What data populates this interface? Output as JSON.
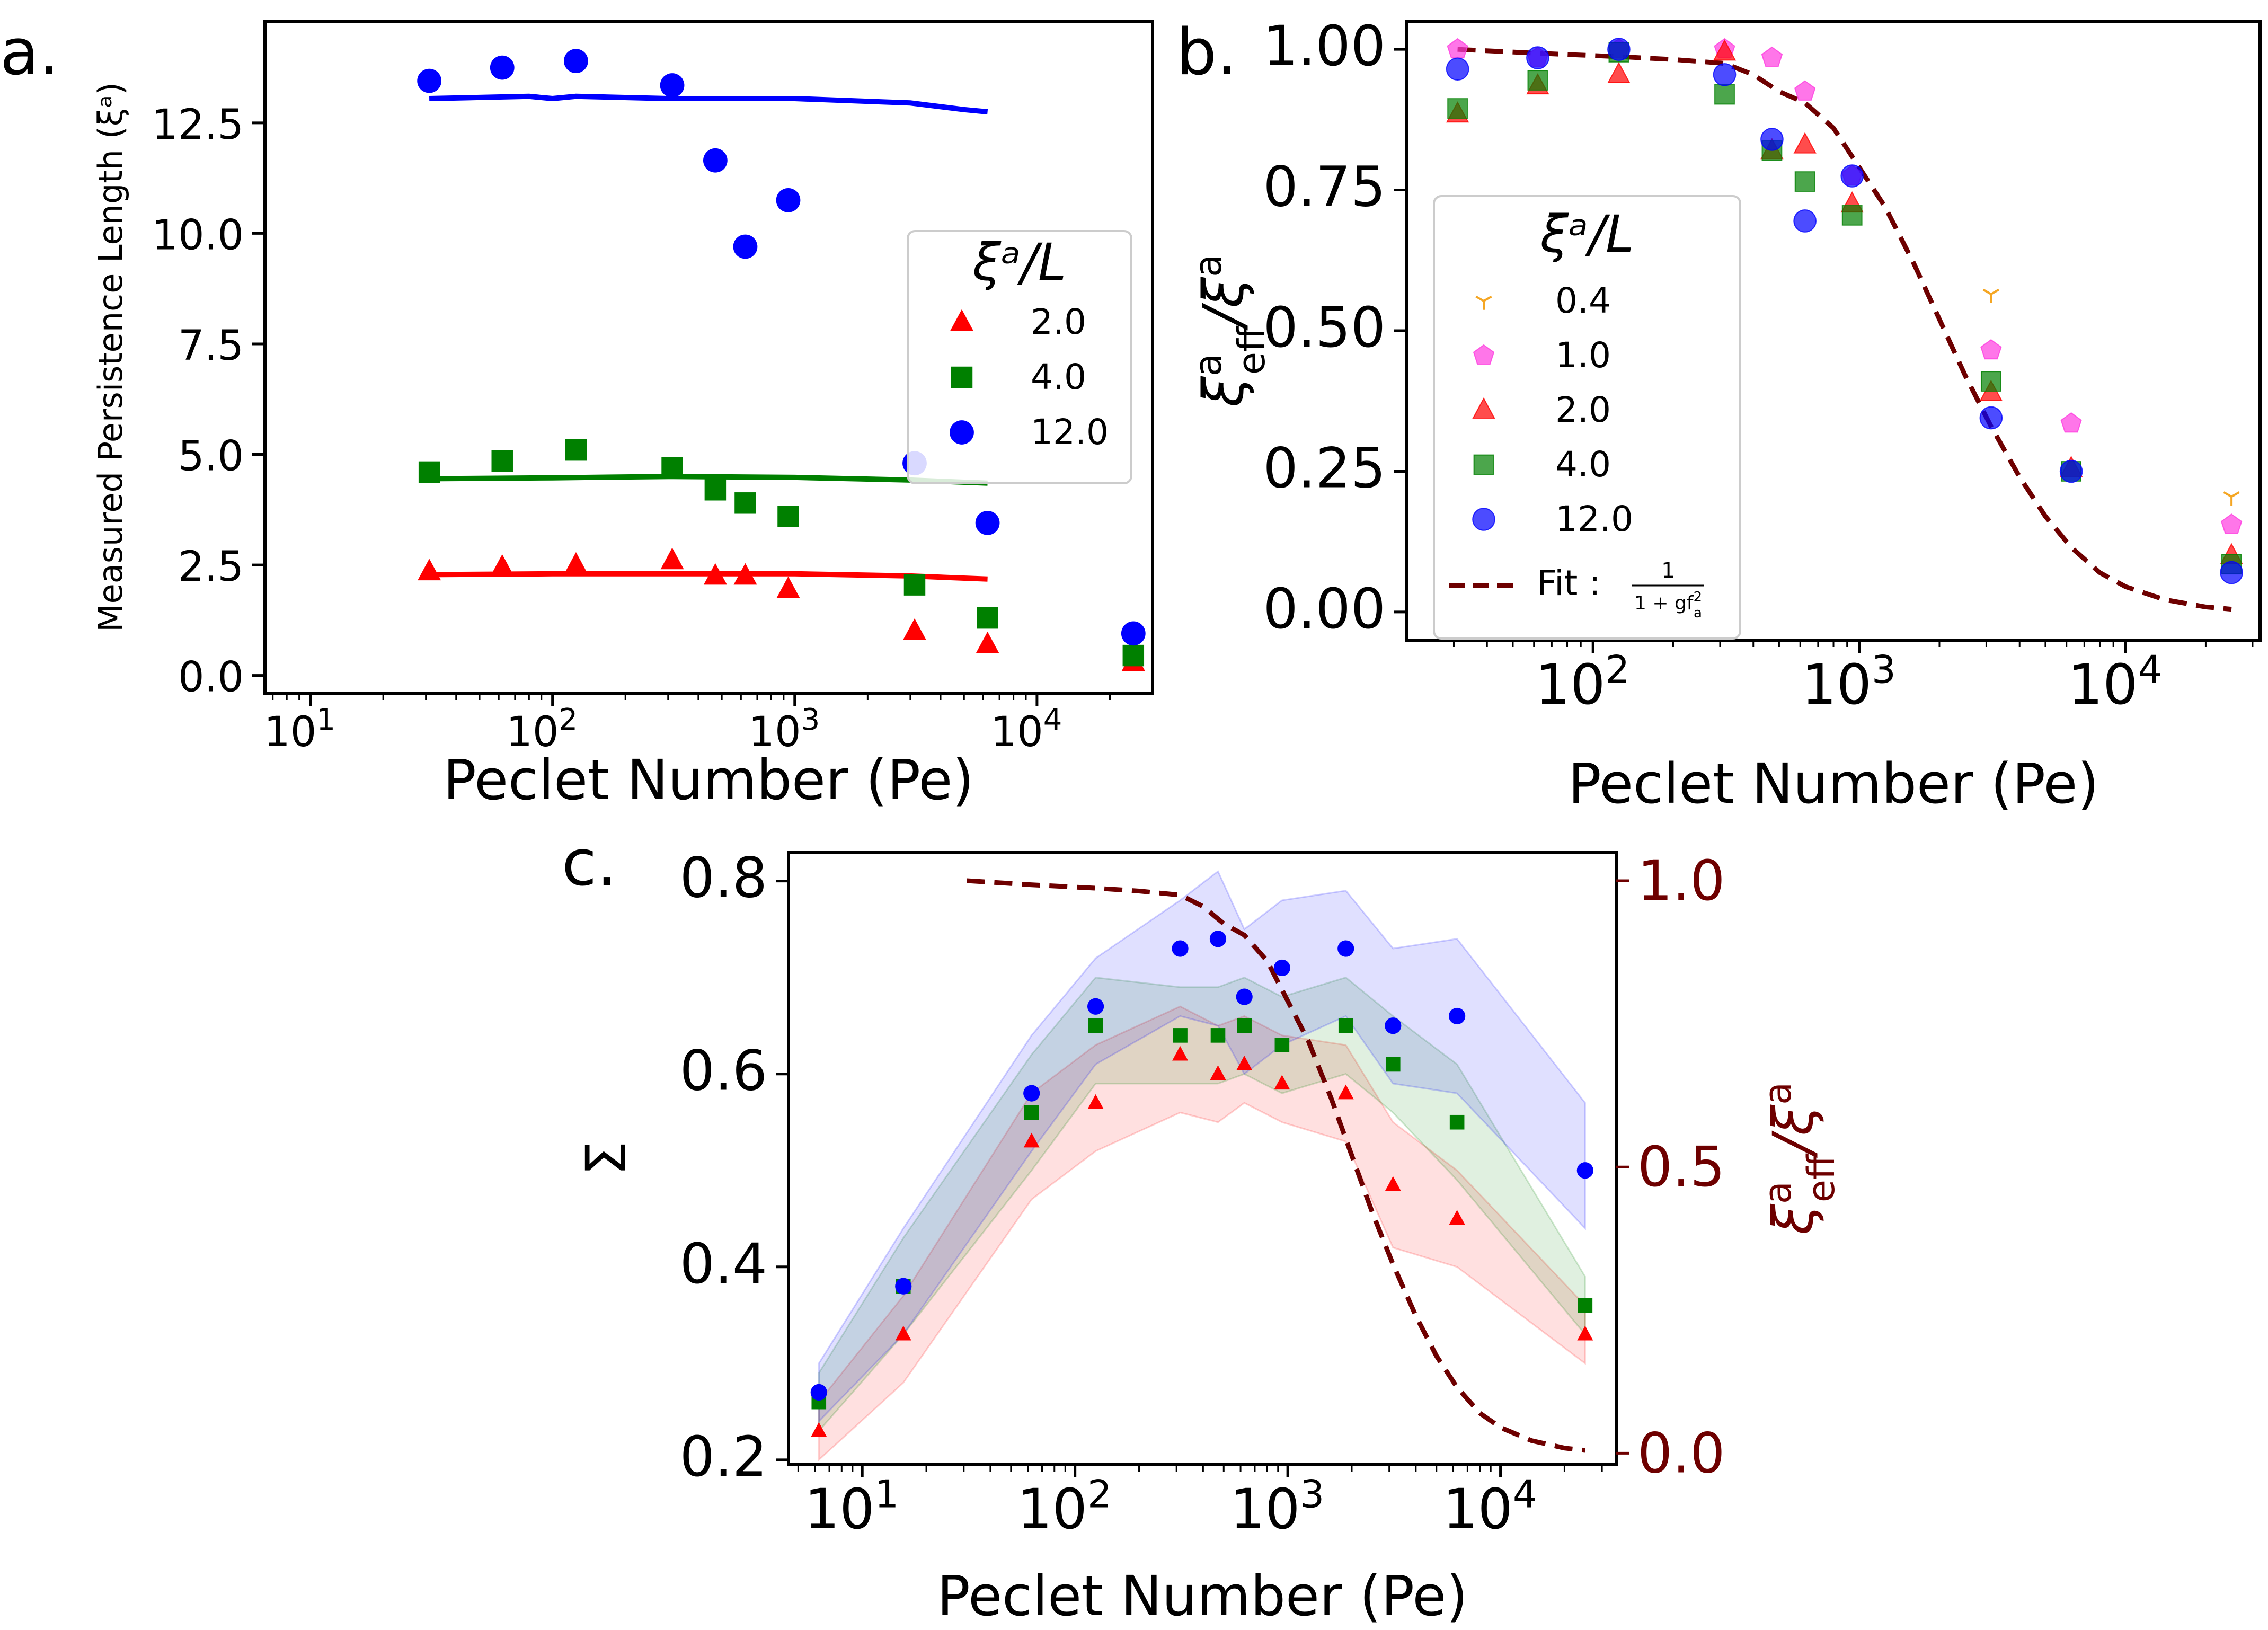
{
  "colors": {
    "red": "#ff0000",
    "green": "#008000",
    "blue": "#0000ff",
    "yellow": "#f5a623",
    "magenta": "#ff3ce0",
    "fit": "#6e0000"
  },
  "chart_data": [
    {
      "panel": "a.",
      "type": "scatter",
      "xscale": "log",
      "xlim": [
        6.5,
        30000
      ],
      "ylim": [
        -0.4,
        14.8
      ],
      "xlabel": "Peclet Number (Pe)",
      "ylabel": "Measured Persistence Length (ξᵃ)",
      "xticks": [
        {
          "value": 10,
          "base": "10",
          "exp": "1"
        },
        {
          "value": 100,
          "base": "10",
          "exp": "2"
        },
        {
          "value": 1000,
          "base": "10",
          "exp": "3"
        },
        {
          "value": 10000,
          "base": "10",
          "exp": "4"
        }
      ],
      "yticks": [
        0.0,
        2.5,
        5.0,
        7.5,
        10.0,
        12.5
      ],
      "ytick_labels": [
        "0.0",
        "2.5",
        "5.0",
        "7.5",
        "10.0",
        "12.5"
      ],
      "legend": {
        "title": "ξᵃ/L",
        "position": "center-right",
        "entries": [
          "2.0",
          "4.0",
          "12.0"
        ]
      },
      "series": [
        {
          "name": "2.0",
          "marker": "triangle",
          "color": "#ff0000",
          "x": [
            31,
            62,
            125,
            312,
            470,
            625,
            940,
            3125,
            6250,
            25000
          ],
          "y": [
            2.35,
            2.45,
            2.5,
            2.6,
            2.25,
            2.25,
            1.95,
            1.0,
            0.7,
            0.3
          ],
          "line": {
            "x": [
              31,
              100,
              300,
              1000,
              3000,
              6250
            ],
            "y": [
              2.28,
              2.3,
              2.3,
              2.3,
              2.25,
              2.18
            ]
          }
        },
        {
          "name": "4.0",
          "marker": "square",
          "color": "#008000",
          "x": [
            31,
            62,
            125,
            312,
            470,
            625,
            940,
            3125,
            6250,
            25000
          ],
          "y": [
            4.6,
            4.85,
            5.1,
            4.7,
            4.2,
            3.9,
            3.6,
            2.05,
            1.3,
            0.45
          ],
          "line": {
            "x": [
              31,
              100,
              300,
              1000,
              3000,
              6250
            ],
            "y": [
              4.45,
              4.47,
              4.5,
              4.48,
              4.42,
              4.35
            ]
          }
        },
        {
          "name": "12.0",
          "marker": "circle",
          "color": "#0000ff",
          "x": [
            31,
            62,
            125,
            312,
            470,
            625,
            940,
            3125,
            6250,
            25000
          ],
          "y": [
            13.45,
            13.75,
            13.9,
            13.35,
            11.65,
            9.7,
            10.75,
            4.8,
            3.45,
            0.95
          ],
          "line": {
            "x": [
              31,
              80,
              100,
              125,
              300,
              1000,
              3000,
              5000,
              6250
            ],
            "y": [
              13.05,
              13.1,
              13.05,
              13.1,
              13.05,
              13.05,
              12.95,
              12.8,
              12.75
            ]
          }
        }
      ]
    },
    {
      "panel": "b.",
      "type": "scatter",
      "xscale": "log",
      "xlim": [
        20,
        32000
      ],
      "ylim": [
        -0.05,
        1.05
      ],
      "xlabel": "Peclet Number (Pe)",
      "ylabel": "ξᵃ_eff/ξᵃ",
      "xticks": [
        {
          "value": 100,
          "base": "10",
          "exp": "2"
        },
        {
          "value": 1000,
          "base": "10",
          "exp": "3"
        },
        {
          "value": 10000,
          "base": "10",
          "exp": "4"
        }
      ],
      "yticks": [
        0.0,
        0.25,
        0.5,
        0.75,
        1.0
      ],
      "ytick_labels": [
        "0.00",
        "0.25",
        "0.50",
        "0.75",
        "1.00"
      ],
      "legend": {
        "title": "ξᵃ/L",
        "position": "center-left",
        "entries": [
          "0.4",
          "1.0",
          "2.0",
          "4.0",
          "12.0"
        ],
        "fit_label": "Fit : ",
        "fit_num": "1",
        "fit_den": "1 + gf",
        "fit_den_sup": "2",
        "fit_den_sub": "a"
      },
      "series": [
        {
          "name": "0.4",
          "marker": "tri_down",
          "color": "#f5a623",
          "x": [
            3125,
            25000
          ],
          "y": [
            0.565,
            0.205
          ]
        },
        {
          "name": "1.0",
          "marker": "pentagon",
          "color": "#ff3ce0",
          "x": [
            31,
            62,
            125,
            312,
            470,
            625,
            940,
            3125,
            6250,
            25000
          ],
          "y": [
            1.0,
            0.985,
            1.0,
            1.0,
            0.985,
            0.925,
            0.775,
            0.465,
            0.335,
            0.155
          ]
        },
        {
          "name": "2.0",
          "marker": "triangle",
          "color": "#ff0000",
          "x": [
            31,
            62,
            125,
            312,
            470,
            625,
            940,
            3125,
            6250,
            25000
          ],
          "y": [
            0.885,
            0.935,
            0.955,
            0.995,
            0.82,
            0.83,
            0.725,
            0.39,
            0.255,
            0.1
          ]
        },
        {
          "name": "4.0",
          "marker": "square",
          "color": "#008000",
          "x": [
            31,
            62,
            125,
            312,
            470,
            625,
            940,
            3125,
            6250,
            25000
          ],
          "y": [
            0.895,
            0.945,
            0.995,
            0.92,
            0.82,
            0.765,
            0.705,
            0.41,
            0.25,
            0.085
          ]
        },
        {
          "name": "12.0",
          "marker": "circle",
          "color": "#0000ff",
          "x": [
            31,
            62,
            125,
            312,
            470,
            625,
            940,
            3125,
            6250,
            25000
          ],
          "y": [
            0.965,
            0.985,
            1.0,
            0.955,
            0.84,
            0.695,
            0.775,
            0.345,
            0.25,
            0.07
          ]
        }
      ],
      "fit": {
        "name": "Fit",
        "color": "#6e0000",
        "x": [
          31,
          62,
          125,
          200,
          312,
          400,
          500,
          625,
          800,
          1000,
          1250,
          1600,
          2000,
          2500,
          3125,
          4000,
          5000,
          6250,
          8000,
          10000,
          14000,
          20000,
          25000
        ],
        "y": [
          1.0,
          0.993,
          0.987,
          0.982,
          0.975,
          0.955,
          0.925,
          0.905,
          0.86,
          0.79,
          0.72,
          0.62,
          0.52,
          0.42,
          0.33,
          0.24,
          0.17,
          0.115,
          0.07,
          0.045,
          0.022,
          0.009,
          0.005
        ]
      }
    },
    {
      "panel": "c.",
      "type": "scatter",
      "xscale": "log",
      "xlim": [
        4.5,
        35000
      ],
      "ylim": [
        0.195,
        0.83
      ],
      "y2lim": [
        -0.02,
        1.05
      ],
      "xlabel": "Peclet Number (Pe)",
      "ylabel": "Σ",
      "y2label": "ξᵃ_eff/ξᵃ",
      "xticks": [
        {
          "value": 10,
          "base": "10",
          "exp": "1"
        },
        {
          "value": 100,
          "base": "10",
          "exp": "2"
        },
        {
          "value": 1000,
          "base": "10",
          "exp": "3"
        },
        {
          "value": 10000,
          "base": "10",
          "exp": "4"
        }
      ],
      "yticks": [
        0.2,
        0.4,
        0.6,
        0.8
      ],
      "ytick_labels": [
        "0.2",
        "0.4",
        "0.6",
        "0.8"
      ],
      "y2ticks": [
        0.0,
        0.5,
        1.0
      ],
      "y2tick_labels": [
        "0.0",
        "0.5",
        "1.0"
      ],
      "series": [
        {
          "name": "2.0",
          "marker": "triangle",
          "color": "#ff0000",
          "x": [
            6.25,
            15.6,
            62.5,
            125,
            312,
            470,
            625,
            940,
            1875,
            3125,
            6250,
            25000
          ],
          "y": [
            0.23,
            0.33,
            0.53,
            0.57,
            0.62,
            0.6,
            0.61,
            0.59,
            0.58,
            0.485,
            0.45,
            0.33
          ],
          "band_low": [
            0.2,
            0.28,
            0.47,
            0.52,
            0.56,
            0.55,
            0.57,
            0.55,
            0.53,
            0.42,
            0.4,
            0.3
          ],
          "band_high": [
            0.26,
            0.37,
            0.58,
            0.63,
            0.67,
            0.65,
            0.66,
            0.64,
            0.63,
            0.55,
            0.5,
            0.36
          ]
        },
        {
          "name": "4.0",
          "marker": "square",
          "color": "#008000",
          "x": [
            6.25,
            15.6,
            62.5,
            125,
            312,
            470,
            625,
            940,
            1875,
            3125,
            6250,
            25000
          ],
          "y": [
            0.26,
            0.38,
            0.56,
            0.65,
            0.64,
            0.64,
            0.65,
            0.63,
            0.65,
            0.61,
            0.55,
            0.36
          ],
          "band_low": [
            0.23,
            0.33,
            0.5,
            0.59,
            0.59,
            0.59,
            0.6,
            0.58,
            0.6,
            0.56,
            0.49,
            0.33
          ],
          "band_high": [
            0.29,
            0.43,
            0.62,
            0.7,
            0.69,
            0.69,
            0.7,
            0.68,
            0.7,
            0.66,
            0.61,
            0.39
          ]
        },
        {
          "name": "12.0",
          "marker": "circle",
          "color": "#0000ff",
          "x": [
            6.25,
            15.6,
            62.5,
            125,
            312,
            470,
            625,
            940,
            1875,
            3125,
            6250,
            25000
          ],
          "y": [
            0.27,
            0.38,
            0.58,
            0.67,
            0.73,
            0.74,
            0.68,
            0.71,
            0.73,
            0.65,
            0.66,
            0.5
          ],
          "band_low": [
            0.24,
            0.33,
            0.52,
            0.61,
            0.66,
            0.65,
            0.6,
            0.63,
            0.66,
            0.59,
            0.58,
            0.44
          ],
          "band_high": [
            0.3,
            0.44,
            0.64,
            0.72,
            0.78,
            0.81,
            0.75,
            0.78,
            0.79,
            0.73,
            0.74,
            0.57
          ]
        }
      ],
      "fit": {
        "name": "Fit",
        "axis": "right",
        "color": "#6e0000",
        "x": [
          31,
          62,
          125,
          200,
          312,
          400,
          500,
          625,
          800,
          1000,
          1250,
          1600,
          2000,
          2500,
          3125,
          4000,
          5000,
          6250,
          8000,
          10000,
          14000,
          20000,
          25000
        ],
        "y": [
          1.0,
          0.993,
          0.987,
          0.982,
          0.975,
          0.955,
          0.925,
          0.905,
          0.86,
          0.79,
          0.72,
          0.62,
          0.52,
          0.42,
          0.33,
          0.24,
          0.17,
          0.115,
          0.07,
          0.045,
          0.022,
          0.009,
          0.005
        ]
      }
    }
  ]
}
